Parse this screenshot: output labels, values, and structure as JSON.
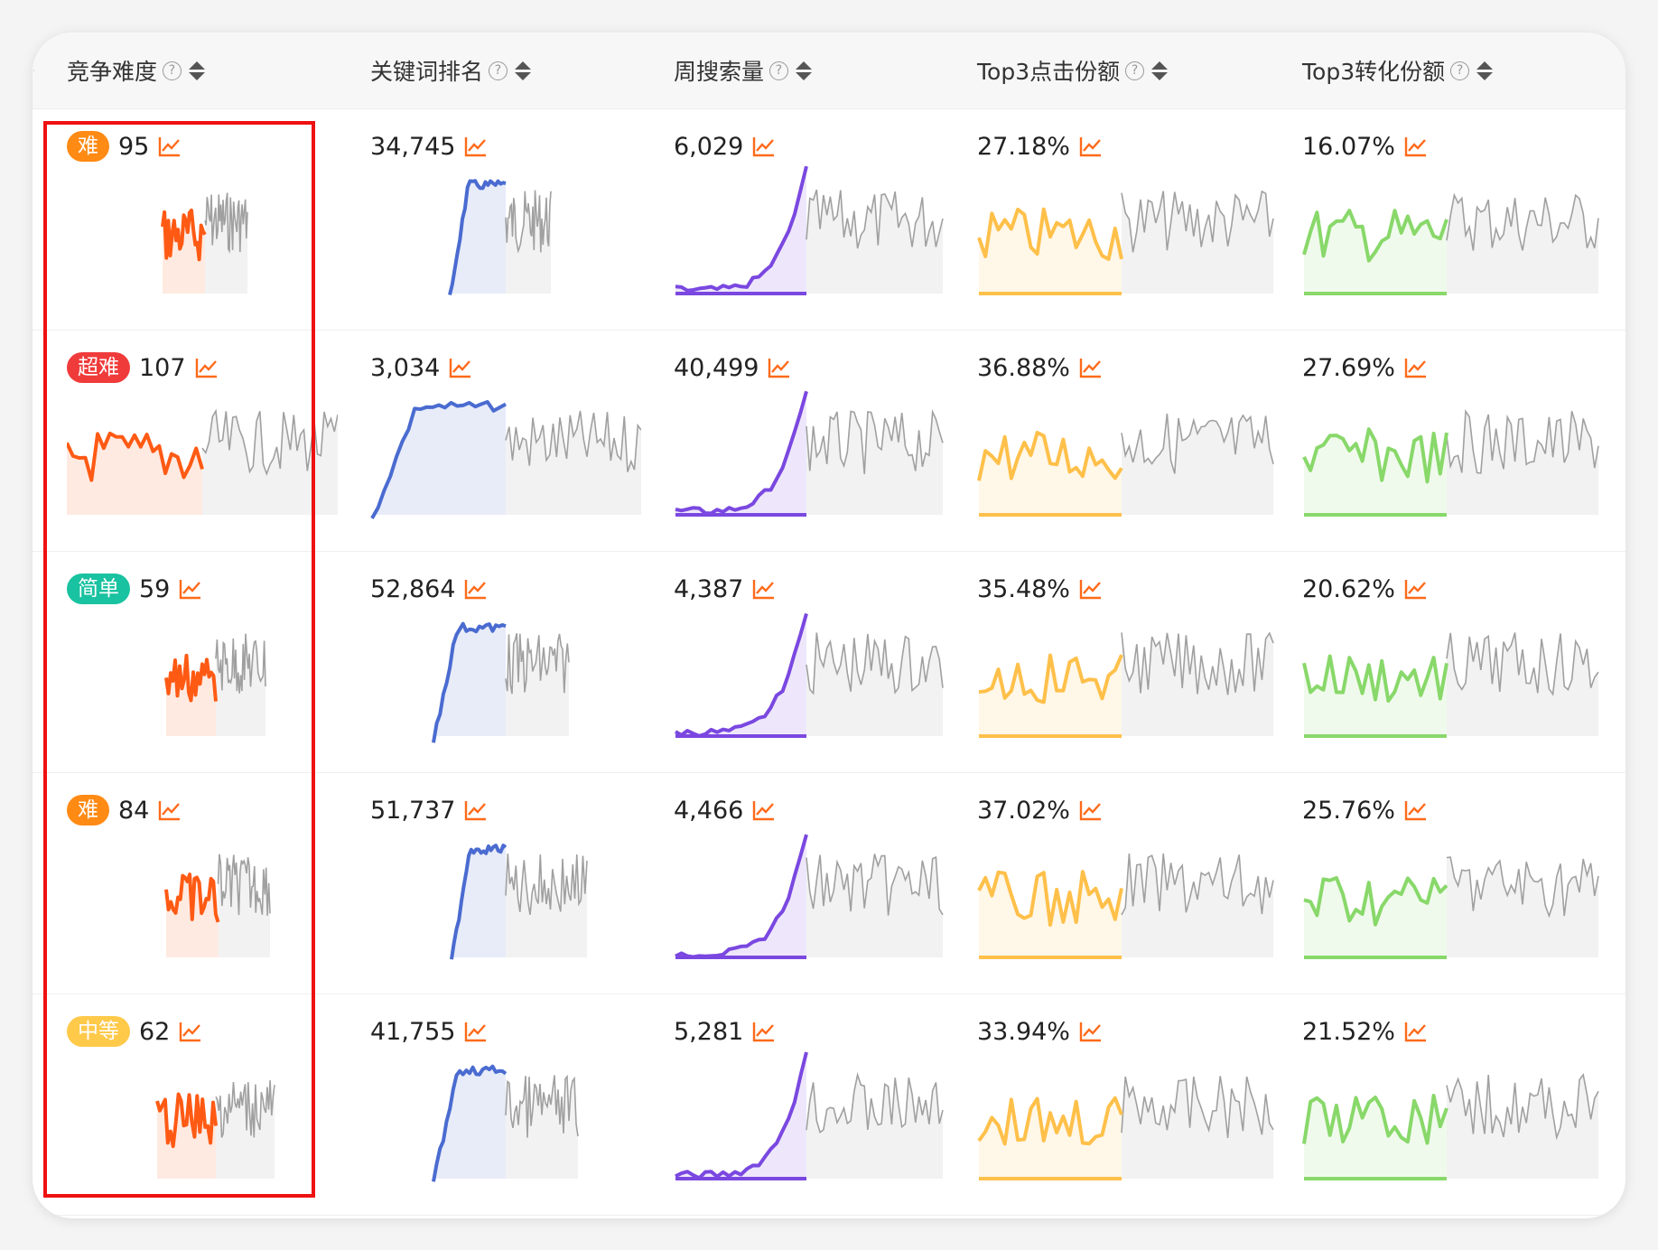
{
  "colors": {
    "badge_hard": "#ff8a14",
    "badge_super_hard": "#f03b3b",
    "badge_easy": "#19c2a0",
    "badge_medium": "#ffc94a",
    "trend_icon": "#ff6a1a",
    "series_difficulty": "#ff5a14",
    "series_rank": "#4a6bd0",
    "series_volume": "#7a48e0",
    "series_click_share": "#ffc04a",
    "series_conv_share": "#88d86a",
    "series_history": "#a0a0a0"
  },
  "table": {
    "columns": [
      {
        "key": "difficulty",
        "label": "竞争难度",
        "help_icon": "question-circle-icon",
        "sort_icon": "sort-caret-icon"
      },
      {
        "key": "rank",
        "label": "关键词排名",
        "help_icon": "question-circle-icon",
        "sort_icon": "sort-caret-icon"
      },
      {
        "key": "volume",
        "label": "周搜索量",
        "help_icon": "question-circle-icon",
        "sort_icon": "sort-caret-icon"
      },
      {
        "key": "click_share",
        "label": "Top3点击份额",
        "help_icon": "question-circle-icon",
        "sort_icon": "sort-caret-icon"
      },
      {
        "key": "conv_share",
        "label": "Top3转化份额",
        "help_icon": "question-circle-icon",
        "sort_icon": "sort-caret-icon"
      }
    ],
    "rows": [
      {
        "difficulty_badge": "难",
        "difficulty_level": "hard",
        "difficulty": "95",
        "rank": "34,745",
        "volume": "6,029",
        "click_share": "27.18%",
        "conv_share": "16.07%"
      },
      {
        "difficulty_badge": "超难",
        "difficulty_level": "super_hard",
        "difficulty": "107",
        "rank": "3,034",
        "volume": "40,499",
        "click_share": "36.88%",
        "conv_share": "27.69%"
      },
      {
        "difficulty_badge": "简单",
        "difficulty_level": "easy",
        "difficulty": "59",
        "rank": "52,864",
        "volume": "4,387",
        "click_share": "35.48%",
        "conv_share": "20.62%"
      },
      {
        "difficulty_badge": "难",
        "difficulty_level": "hard",
        "difficulty": "84",
        "rank": "51,737",
        "volume": "4,466",
        "click_share": "37.02%",
        "conv_share": "25.76%"
      },
      {
        "difficulty_badge": "中等",
        "difficulty_level": "medium",
        "difficulty": "62",
        "rank": "41,755",
        "volume": "5,281",
        "click_share": "33.94%",
        "conv_share": "21.52%"
      }
    ]
  }
}
